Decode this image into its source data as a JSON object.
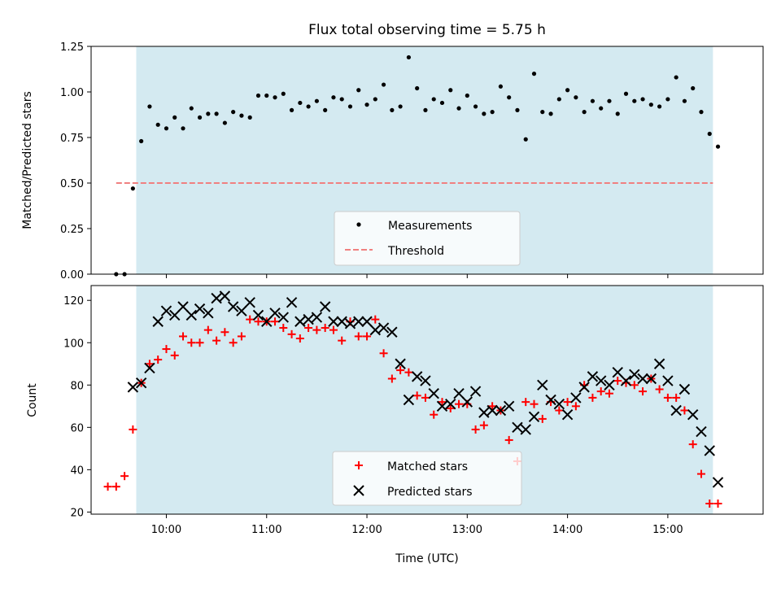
{
  "colors": {
    "observing_window": "#d4eaf1",
    "measurement": "#000000",
    "threshold": "#f08080",
    "matched": "#ff0000",
    "predicted": "#000000"
  },
  "chart_data": [
    {
      "type": "scatter",
      "title": "Flux total observing time = 5.75 h",
      "xlabel": "",
      "ylabel": "Matched/Predicted stars",
      "xlim": [
        "09:15",
        "15:57"
      ],
      "ylim": [
        0,
        1.25
      ],
      "yticks": [
        "0.00",
        "0.25",
        "0.50",
        "0.75",
        "1.00",
        "1.25"
      ],
      "xticks": [
        "10:00",
        "11:00",
        "12:00",
        "13:00",
        "14:00",
        "15:00"
      ],
      "shaded_interval": [
        "09:42",
        "15:27"
      ],
      "legend_position": "lower center",
      "threshold": {
        "name": "Threshold",
        "value": 0.5,
        "x_range": [
          "09:30",
          "15:27"
        ]
      },
      "series": [
        {
          "name": "Measurements",
          "marker": "dot",
          "x": [
            "09:30",
            "09:35",
            "09:40",
            "09:45",
            "09:50",
            "09:55",
            "10:00",
            "10:05",
            "10:10",
            "10:15",
            "10:20",
            "10:25",
            "10:30",
            "10:35",
            "10:40",
            "10:45",
            "10:50",
            "10:55",
            "11:00",
            "11:05",
            "11:10",
            "11:15",
            "11:20",
            "11:25",
            "11:30",
            "11:35",
            "11:40",
            "11:45",
            "11:50",
            "11:55",
            "12:00",
            "12:05",
            "12:10",
            "12:15",
            "12:20",
            "12:25",
            "12:30",
            "12:35",
            "12:40",
            "12:45",
            "12:50",
            "12:55",
            "13:00",
            "13:05",
            "13:10",
            "13:15",
            "13:20",
            "13:25",
            "13:30",
            "13:35",
            "13:40",
            "13:45",
            "13:50",
            "13:55",
            "14:00",
            "14:05",
            "14:10",
            "14:15",
            "14:20",
            "14:25",
            "14:30",
            "14:35",
            "14:40",
            "14:45",
            "14:50",
            "14:55",
            "15:00",
            "15:05",
            "15:10",
            "15:15",
            "15:20",
            "15:25",
            "15:30"
          ],
          "y": [
            0.0,
            0.0,
            0.47,
            0.73,
            0.92,
            0.82,
            0.8,
            0.86,
            0.8,
            0.91,
            0.86,
            0.88,
            0.88,
            0.83,
            0.89,
            0.87,
            0.86,
            0.98,
            0.98,
            0.97,
            0.99,
            0.9,
            0.94,
            0.92,
            0.95,
            0.9,
            0.97,
            0.96,
            0.92,
            1.01,
            0.93,
            0.96,
            1.04,
            0.9,
            0.92,
            1.19,
            1.02,
            0.9,
            0.96,
            0.94,
            1.01,
            0.91,
            0.98,
            0.92,
            0.88,
            0.89,
            1.03,
            0.97,
            0.9,
            0.74,
            1.1,
            0.89,
            0.88,
            0.96,
            1.01,
            0.97,
            0.89,
            0.95,
            0.91,
            0.95,
            0.88,
            0.99,
            0.95,
            0.96,
            0.93,
            0.92,
            0.96,
            1.08,
            0.95,
            1.02,
            0.89,
            0.77,
            0.7
          ]
        }
      ]
    },
    {
      "type": "scatter",
      "title": "",
      "xlabel": "Time (UTC)",
      "ylabel": "Count",
      "xlim": [
        "09:15",
        "15:57"
      ],
      "ylim": [
        19,
        127
      ],
      "yticks": [
        "20",
        "40",
        "60",
        "80",
        "100",
        "120"
      ],
      "xticks": [
        "10:00",
        "11:00",
        "12:00",
        "13:00",
        "14:00",
        "15:00"
      ],
      "shaded_interval": [
        "09:42",
        "15:27"
      ],
      "legend_position": "lower center",
      "series": [
        {
          "name": "Matched stars",
          "marker": "plus",
          "x": [
            "09:25",
            "09:30",
            "09:35",
            "09:40",
            "09:45",
            "09:50",
            "09:55",
            "10:00",
            "10:05",
            "10:10",
            "10:15",
            "10:20",
            "10:25",
            "10:30",
            "10:35",
            "10:40",
            "10:45",
            "10:50",
            "10:55",
            "11:00",
            "11:05",
            "11:10",
            "11:15",
            "11:20",
            "11:25",
            "11:30",
            "11:35",
            "11:40",
            "11:45",
            "11:50",
            "11:55",
            "12:00",
            "12:05",
            "12:10",
            "12:15",
            "12:20",
            "12:25",
            "12:30",
            "12:35",
            "12:40",
            "12:45",
            "12:50",
            "12:55",
            "13:00",
            "13:05",
            "13:10",
            "13:15",
            "13:20",
            "13:25",
            "13:30",
            "13:35",
            "13:40",
            "13:45",
            "13:50",
            "13:55",
            "14:00",
            "14:05",
            "14:10",
            "14:15",
            "14:20",
            "14:25",
            "14:30",
            "14:35",
            "14:40",
            "14:45",
            "14:50",
            "14:55",
            "15:00",
            "15:05",
            "15:10",
            "15:15",
            "15:20",
            "15:25",
            "15:30"
          ],
          "y": [
            32,
            32,
            37,
            59,
            81,
            90,
            92,
            97,
            94,
            103,
            100,
            100,
            106,
            101,
            105,
            100,
            103,
            111,
            110,
            110,
            110,
            107,
            104,
            102,
            107,
            106,
            107,
            106,
            101,
            110,
            103,
            103,
            111,
            95,
            83,
            87,
            86,
            75,
            74,
            66,
            72,
            69,
            71,
            71,
            59,
            61,
            70,
            68,
            54,
            44,
            72,
            71,
            64,
            72,
            68,
            72,
            70,
            80,
            74,
            77,
            76,
            82,
            81,
            80,
            77,
            83,
            78,
            74,
            74,
            68,
            52,
            38,
            24,
            24
          ],
          "x_note": ""
        },
        {
          "name": "Predicted stars",
          "marker": "x",
          "x": [
            "09:40",
            "09:45",
            "09:50",
            "09:55",
            "10:00",
            "10:05",
            "10:10",
            "10:15",
            "10:20",
            "10:25",
            "10:30",
            "10:35",
            "10:40",
            "10:45",
            "10:50",
            "10:55",
            "11:00",
            "11:05",
            "11:10",
            "11:15",
            "11:20",
            "11:25",
            "11:30",
            "11:35",
            "11:40",
            "11:45",
            "11:50",
            "11:55",
            "12:00",
            "12:05",
            "12:10",
            "12:15",
            "12:20",
            "12:25",
            "12:30",
            "12:35",
            "12:40",
            "12:45",
            "12:50",
            "12:55",
            "13:00",
            "13:05",
            "13:10",
            "13:15",
            "13:20",
            "13:25",
            "13:30",
            "13:35",
            "13:40",
            "13:45",
            "13:50",
            "13:55",
            "14:00",
            "14:05",
            "14:10",
            "14:15",
            "14:20",
            "14:25",
            "14:30",
            "14:35",
            "14:40",
            "14:45",
            "14:50",
            "14:55",
            "15:00",
            "15:05",
            "15:10",
            "15:15",
            "15:20",
            "15:25",
            "15:30"
          ],
          "y": [
            79,
            81,
            88,
            110,
            115,
            113,
            117,
            113,
            116,
            114,
            121,
            122,
            117,
            115,
            119,
            113,
            110,
            114,
            112,
            119,
            110,
            111,
            112,
            117,
            110,
            110,
            109,
            110,
            110,
            106,
            107,
            105,
            90,
            73,
            84,
            82,
            76,
            70,
            71,
            76,
            72,
            77,
            67,
            68,
            68,
            70,
            60,
            59,
            65,
            80,
            73,
            71,
            66,
            74,
            79,
            84,
            82,
            80,
            86,
            82,
            85,
            83,
            83,
            90,
            82,
            68,
            78,
            66,
            58,
            49,
            34
          ],
          "x_note": ""
        }
      ]
    }
  ]
}
